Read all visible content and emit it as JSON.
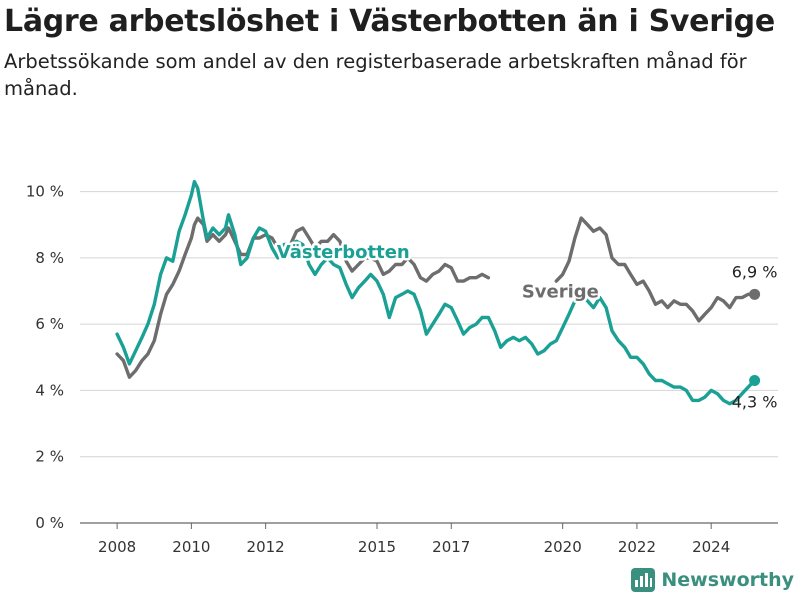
{
  "header": {
    "title": "Lägre arbetslöshet i Västerbotten än i Sverige",
    "subtitle": "Arbetssökande som andel av den registerbaserade arbetskraften månad för månad."
  },
  "brand": {
    "name": "Newsworthy",
    "color": "#3a8f7e"
  },
  "chart_data": {
    "type": "line",
    "title": "Lägre arbetslöshet i Västerbotten än i Sverige",
    "subtitle": "Arbetssökande som andel av den registerbaserade arbetskraften månad för månad.",
    "xlabel": "",
    "ylabel": "",
    "ylim": [
      0,
      10.5
    ],
    "xlim": [
      2007.0,
      2025.8
    ],
    "y_ticks": [
      {
        "value": 0,
        "label": "0 %"
      },
      {
        "value": 2,
        "label": "2 %"
      },
      {
        "value": 4,
        "label": "4 %"
      },
      {
        "value": 6,
        "label": "6 %"
      },
      {
        "value": 8,
        "label": "8 %"
      },
      {
        "value": 10,
        "label": "10 %"
      }
    ],
    "x_ticks": [
      {
        "value": 2008,
        "label": "2008"
      },
      {
        "value": 2010,
        "label": "2010"
      },
      {
        "value": 2012,
        "label": "2012"
      },
      {
        "value": 2015,
        "label": "2015"
      },
      {
        "value": 2017,
        "label": "2017"
      },
      {
        "value": 2020,
        "label": "2020"
      },
      {
        "value": 2022,
        "label": "2022"
      },
      {
        "value": 2024,
        "label": "2024"
      }
    ],
    "grid": "horizontal",
    "series": [
      {
        "name": "Sverige",
        "color": "#6d6d6d",
        "end_label": "6,9 %",
        "points": [
          [
            2008.0,
            5.1
          ],
          [
            2008.17,
            4.9
          ],
          [
            2008.33,
            4.4
          ],
          [
            2008.5,
            4.6
          ],
          [
            2008.67,
            4.9
          ],
          [
            2008.83,
            5.1
          ],
          [
            2009.0,
            5.5
          ],
          [
            2009.17,
            6.3
          ],
          [
            2009.33,
            6.9
          ],
          [
            2009.5,
            7.2
          ],
          [
            2009.67,
            7.6
          ],
          [
            2009.83,
            8.1
          ],
          [
            2010.0,
            8.6
          ],
          [
            2010.08,
            9.0
          ],
          [
            2010.17,
            9.2
          ],
          [
            2010.33,
            9.0
          ],
          [
            2010.42,
            8.5
          ],
          [
            2010.58,
            8.7
          ],
          [
            2010.75,
            8.5
          ],
          [
            2010.92,
            8.7
          ],
          [
            2011.0,
            8.9
          ],
          [
            2011.17,
            8.5
          ],
          [
            2011.33,
            8.1
          ],
          [
            2011.5,
            8.1
          ],
          [
            2011.67,
            8.6
          ],
          [
            2011.83,
            8.6
          ],
          [
            2012.0,
            8.7
          ],
          [
            2012.17,
            8.6
          ],
          [
            2012.33,
            8.3
          ],
          [
            2012.5,
            8.4
          ],
          [
            2012.67,
            8.4
          ],
          [
            2012.83,
            8.8
          ],
          [
            2013.0,
            8.9
          ],
          [
            2013.17,
            8.6
          ],
          [
            2013.33,
            8.3
          ],
          [
            2013.5,
            8.5
          ],
          [
            2013.67,
            8.5
          ],
          [
            2013.83,
            8.7
          ],
          [
            2014.0,
            8.5
          ],
          [
            2014.17,
            7.9
          ],
          [
            2014.33,
            7.6
          ],
          [
            2014.5,
            7.8
          ],
          [
            2014.67,
            8.0
          ],
          [
            2014.83,
            8.0
          ],
          [
            2015.0,
            7.9
          ],
          [
            2015.17,
            7.5
          ],
          [
            2015.33,
            7.6
          ],
          [
            2015.5,
            7.8
          ],
          [
            2015.67,
            7.8
          ],
          [
            2015.83,
            8.0
          ],
          [
            2016.0,
            7.8
          ],
          [
            2016.17,
            7.4
          ],
          [
            2016.33,
            7.3
          ],
          [
            2016.5,
            7.5
          ],
          [
            2016.67,
            7.6
          ],
          [
            2016.83,
            7.8
          ],
          [
            2017.0,
            7.7
          ],
          [
            2017.17,
            7.3
          ],
          [
            2017.33,
            7.3
          ],
          [
            2017.5,
            7.4
          ],
          [
            2017.67,
            7.4
          ],
          [
            2017.83,
            7.5
          ],
          [
            2018.0,
            7.4
          ],
          [
            2019.83,
            7.3
          ],
          [
            2020.0,
            7.5
          ],
          [
            2020.17,
            7.9
          ],
          [
            2020.33,
            8.6
          ],
          [
            2020.5,
            9.2
          ],
          [
            2020.67,
            9.0
          ],
          [
            2020.83,
            8.8
          ],
          [
            2021.0,
            8.9
          ],
          [
            2021.17,
            8.7
          ],
          [
            2021.33,
            8.0
          ],
          [
            2021.5,
            7.8
          ],
          [
            2021.67,
            7.8
          ],
          [
            2021.83,
            7.5
          ],
          [
            2022.0,
            7.2
          ],
          [
            2022.17,
            7.3
          ],
          [
            2022.33,
            7.0
          ],
          [
            2022.5,
            6.6
          ],
          [
            2022.67,
            6.7
          ],
          [
            2022.83,
            6.5
          ],
          [
            2023.0,
            6.7
          ],
          [
            2023.17,
            6.6
          ],
          [
            2023.33,
            6.6
          ],
          [
            2023.5,
            6.4
          ],
          [
            2023.67,
            6.1
          ],
          [
            2023.83,
            6.3
          ],
          [
            2024.0,
            6.5
          ],
          [
            2024.17,
            6.8
          ],
          [
            2024.33,
            6.7
          ],
          [
            2024.5,
            6.5
          ],
          [
            2024.67,
            6.8
          ],
          [
            2024.83,
            6.8
          ],
          [
            2025.0,
            6.9
          ],
          [
            2025.17,
            6.9
          ]
        ]
      },
      {
        "name": "Västerbotten",
        "color": "#1aa095",
        "end_label": "4,3 %",
        "points": [
          [
            2008.0,
            5.7
          ],
          [
            2008.17,
            5.3
          ],
          [
            2008.33,
            4.8
          ],
          [
            2008.5,
            5.2
          ],
          [
            2008.67,
            5.6
          ],
          [
            2008.83,
            6.0
          ],
          [
            2009.0,
            6.6
          ],
          [
            2009.17,
            7.5
          ],
          [
            2009.33,
            8.0
          ],
          [
            2009.5,
            7.9
          ],
          [
            2009.67,
            8.8
          ],
          [
            2009.83,
            9.3
          ],
          [
            2010.0,
            9.9
          ],
          [
            2010.08,
            10.3
          ],
          [
            2010.17,
            10.1
          ],
          [
            2010.33,
            9.1
          ],
          [
            2010.42,
            8.6
          ],
          [
            2010.58,
            8.9
          ],
          [
            2010.75,
            8.7
          ],
          [
            2010.92,
            8.9
          ],
          [
            2011.0,
            9.3
          ],
          [
            2011.17,
            8.7
          ],
          [
            2011.33,
            7.8
          ],
          [
            2011.5,
            8.0
          ],
          [
            2011.67,
            8.6
          ],
          [
            2011.83,
            8.9
          ],
          [
            2012.0,
            8.8
          ],
          [
            2012.17,
            8.3
          ],
          [
            2012.33,
            8.0
          ],
          [
            2012.5,
            8.4
          ],
          [
            2012.67,
            8.4
          ],
          [
            2012.83,
            8.5
          ],
          [
            2013.0,
            8.4
          ],
          [
            2013.17,
            7.8
          ],
          [
            2013.33,
            7.5
          ],
          [
            2013.5,
            7.8
          ],
          [
            2013.67,
            8.0
          ],
          [
            2013.83,
            7.8
          ],
          [
            2014.0,
            7.7
          ],
          [
            2014.17,
            7.2
          ],
          [
            2014.33,
            6.8
          ],
          [
            2014.5,
            7.1
          ],
          [
            2014.67,
            7.3
          ],
          [
            2014.83,
            7.5
          ],
          [
            2015.0,
            7.3
          ],
          [
            2015.17,
            6.9
          ],
          [
            2015.33,
            6.2
          ],
          [
            2015.5,
            6.8
          ],
          [
            2015.67,
            6.9
          ],
          [
            2015.83,
            7.0
          ],
          [
            2016.0,
            6.9
          ],
          [
            2016.17,
            6.4
          ],
          [
            2016.33,
            5.7
          ],
          [
            2016.5,
            6.0
          ],
          [
            2016.67,
            6.3
          ],
          [
            2016.83,
            6.6
          ],
          [
            2017.0,
            6.5
          ],
          [
            2017.17,
            6.1
          ],
          [
            2017.33,
            5.7
          ],
          [
            2017.5,
            5.9
          ],
          [
            2017.67,
            6.0
          ],
          [
            2017.83,
            6.2
          ],
          [
            2018.0,
            6.2
          ],
          [
            2018.17,
            5.8
          ],
          [
            2018.33,
            5.3
          ],
          [
            2018.5,
            5.5
          ],
          [
            2018.67,
            5.6
          ],
          [
            2018.83,
            5.5
          ],
          [
            2019.0,
            5.6
          ],
          [
            2019.17,
            5.4
          ],
          [
            2019.33,
            5.1
          ],
          [
            2019.5,
            5.2
          ],
          [
            2019.67,
            5.4
          ],
          [
            2019.83,
            5.5
          ],
          [
            2020.0,
            5.9
          ],
          [
            2020.17,
            6.3
          ],
          [
            2020.33,
            6.7
          ],
          [
            2020.5,
            6.9
          ],
          [
            2020.67,
            6.7
          ],
          [
            2020.83,
            6.5
          ],
          [
            2021.0,
            6.8
          ],
          [
            2021.17,
            6.5
          ],
          [
            2021.33,
            5.8
          ],
          [
            2021.5,
            5.5
          ],
          [
            2021.67,
            5.3
          ],
          [
            2021.83,
            5.0
          ],
          [
            2022.0,
            5.0
          ],
          [
            2022.17,
            4.8
          ],
          [
            2022.33,
            4.5
          ],
          [
            2022.5,
            4.3
          ],
          [
            2022.67,
            4.3
          ],
          [
            2022.83,
            4.2
          ],
          [
            2023.0,
            4.1
          ],
          [
            2023.17,
            4.1
          ],
          [
            2023.33,
            4.0
          ],
          [
            2023.5,
            3.7
          ],
          [
            2023.67,
            3.7
          ],
          [
            2023.83,
            3.8
          ],
          [
            2024.0,
            4.0
          ],
          [
            2024.17,
            3.9
          ],
          [
            2024.33,
            3.7
          ],
          [
            2024.5,
            3.6
          ],
          [
            2024.67,
            3.7
          ],
          [
            2024.83,
            3.9
          ],
          [
            2025.0,
            4.1
          ],
          [
            2025.17,
            4.3
          ]
        ]
      }
    ],
    "labels": [
      {
        "series": "Västerbotten",
        "text": "Västerbotten",
        "at": [
          2012.3,
          8.0
        ]
      },
      {
        "series": "Sverige",
        "text": "Sverige",
        "at": [
          2018.9,
          6.8
        ]
      }
    ]
  }
}
